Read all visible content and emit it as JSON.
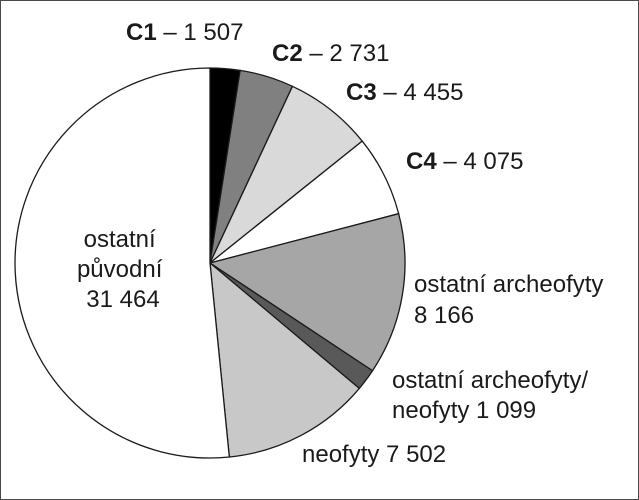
{
  "chart_data": {
    "type": "pie",
    "slices": [
      {
        "bold": "C1",
        "rest": " – 1 507",
        "lines": [],
        "value": 1507,
        "color": "#000000"
      },
      {
        "bold": "C2",
        "rest": " – 2 731",
        "lines": [],
        "value": 2731,
        "color": "#808080"
      },
      {
        "bold": "C3",
        "rest": " – 4 455",
        "lines": [],
        "value": 4455,
        "color": "#d9d9d9"
      },
      {
        "bold": "C4",
        "rest": " – 4 075",
        "lines": [],
        "value": 4075,
        "color": "#ffffff"
      },
      {
        "bold": "",
        "rest": "",
        "lines": [
          "ostatní archeofyty",
          "8 166"
        ],
        "value": 8166,
        "color": "#a6a6a6"
      },
      {
        "bold": "",
        "rest": "",
        "lines": [
          "ostatní archeofyty/",
          "neofyty 1 099"
        ],
        "value": 1099,
        "color": "#595959"
      },
      {
        "bold": "",
        "rest": "",
        "lines": [
          "neofyty 7 502"
        ],
        "value": 7502,
        "color": "#c8c8c8"
      },
      {
        "bold": "",
        "rest": "",
        "lines": [
          "ostatní",
          "původní",
          "31 464"
        ],
        "value": 31464,
        "color": "#ffffff"
      }
    ]
  }
}
